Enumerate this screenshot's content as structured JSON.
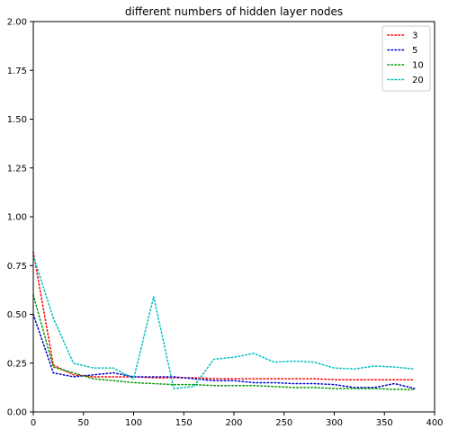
{
  "chart_data": {
    "type": "line",
    "title": "different numbers of hidden layer nodes",
    "xlabel": "",
    "ylabel": "",
    "xlim": [
      0,
      400
    ],
    "ylim": [
      0,
      2.0
    ],
    "xticks": [
      0,
      50,
      100,
      150,
      200,
      250,
      300,
      350,
      400
    ],
    "xtick_labels": [
      "0",
      "50",
      "100",
      "150",
      "200",
      "250",
      "300",
      "350",
      "400"
    ],
    "yticks": [
      0,
      0.25,
      0.5,
      0.75,
      1.0,
      1.25,
      1.5,
      1.75,
      2.0
    ],
    "ytick_labels": [
      "0.00",
      "0.25",
      "0.50",
      "0.75",
      "1.00",
      "1.25",
      "1.50",
      "1.75",
      "2.00"
    ],
    "grid": false,
    "legend_position": "top-right",
    "x": [
      0,
      20,
      40,
      60,
      80,
      100,
      120,
      140,
      160,
      180,
      200,
      220,
      240,
      260,
      280,
      300,
      320,
      340,
      360,
      380
    ],
    "series": [
      {
        "name": "3",
        "color": "#ff0000",
        "values": [
          0.82,
          0.24,
          0.19,
          0.18,
          0.18,
          0.18,
          0.175,
          0.175,
          0.175,
          0.17,
          0.17,
          0.17,
          0.17,
          0.17,
          0.17,
          0.165,
          0.165,
          0.165,
          0.165,
          0.165
        ]
      },
      {
        "name": "5",
        "color": "#0000cc",
        "values": [
          0.5,
          0.2,
          0.18,
          0.19,
          0.2,
          0.18,
          0.18,
          0.18,
          0.17,
          0.16,
          0.16,
          0.15,
          0.15,
          0.145,
          0.145,
          0.14,
          0.125,
          0.125,
          0.145,
          0.12
        ]
      },
      {
        "name": "10",
        "color": "#009900",
        "values": [
          0.6,
          0.23,
          0.2,
          0.17,
          0.16,
          0.15,
          0.145,
          0.14,
          0.14,
          0.135,
          0.135,
          0.135,
          0.13,
          0.125,
          0.125,
          0.12,
          0.12,
          0.12,
          0.115,
          0.115
        ]
      },
      {
        "name": "20",
        "color": "#00bfbf",
        "values": [
          0.8,
          0.48,
          0.25,
          0.225,
          0.225,
          0.17,
          0.59,
          0.12,
          0.13,
          0.27,
          0.28,
          0.3,
          0.255,
          0.26,
          0.255,
          0.225,
          0.22,
          0.235,
          0.23,
          0.22
        ]
      }
    ]
  }
}
